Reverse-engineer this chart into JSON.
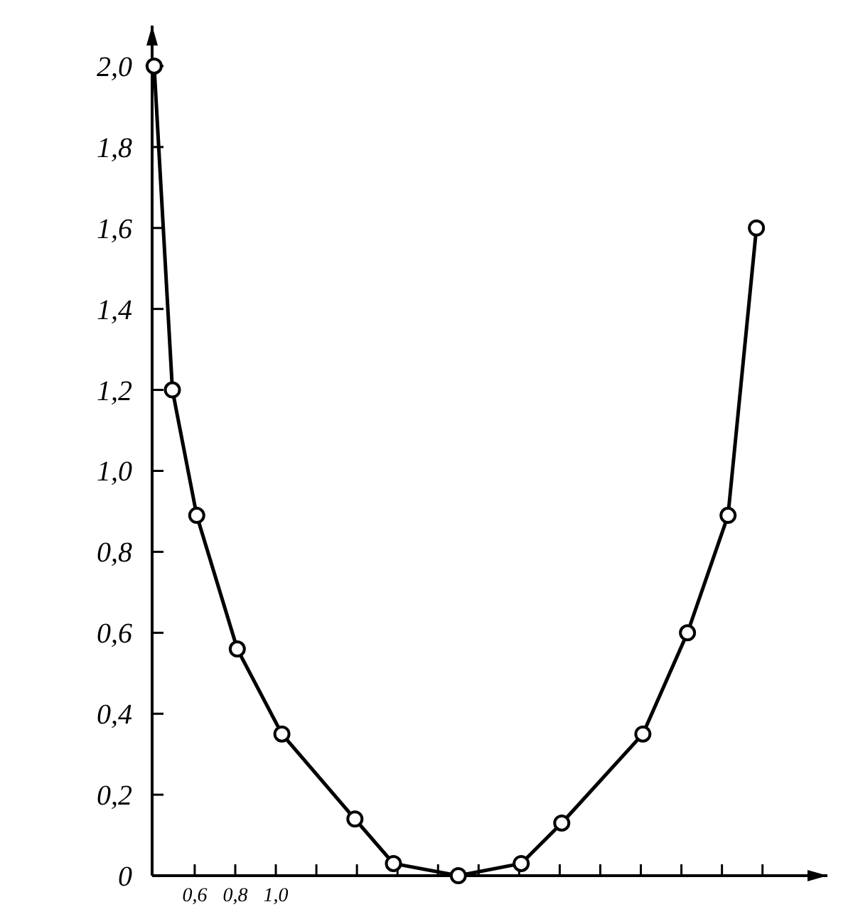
{
  "chart_data": {
    "type": "line",
    "x": [
      0.4,
      0.49,
      0.61,
      0.81,
      1.03,
      1.39,
      1.58,
      1.9,
      2.21,
      2.41,
      2.81,
      3.03,
      3.23,
      3.37
    ],
    "values": [
      2.0,
      1.2,
      0.89,
      0.56,
      0.35,
      0.14,
      0.03,
      0.0,
      0.03,
      0.13,
      0.35,
      0.6,
      0.89,
      1.6
    ],
    "color": "#000000",
    "marker": "circle",
    "line_style": "solid",
    "xlim": [
      0.39,
      3.72
    ],
    "xticks": [
      {
        "value": 0.6,
        "label": "0,6"
      },
      {
        "value": 0.8,
        "label": "0,8"
      },
      {
        "value": 1.0,
        "label": "1,0"
      },
      {
        "value": 1.2,
        "label": null
      },
      {
        "value": 1.4,
        "label": null
      },
      {
        "value": 1.6,
        "label": null
      },
      {
        "value": 1.8,
        "label": null
      },
      {
        "value": 2.0,
        "label": null
      },
      {
        "value": 2.2,
        "label": null
      },
      {
        "value": 2.4,
        "label": null
      },
      {
        "value": 2.6,
        "label": null
      },
      {
        "value": 2.8,
        "label": null
      },
      {
        "value": 3.0,
        "label": null
      },
      {
        "value": 3.2,
        "label": null
      },
      {
        "value": 3.4,
        "label": null
      }
    ],
    "ylim": [
      0,
      2.1
    ],
    "yticks": [
      {
        "value": 0,
        "label": "0"
      },
      {
        "value": 0.2,
        "label": "0,2"
      },
      {
        "value": 0.4,
        "label": "0,4"
      },
      {
        "value": 0.6,
        "label": "0,6"
      },
      {
        "value": 0.8,
        "label": "0,8"
      },
      {
        "value": 1.0,
        "label": "1,0"
      },
      {
        "value": 1.2,
        "label": "1,2"
      },
      {
        "value": 1.4,
        "label": "1,4"
      },
      {
        "value": 1.6,
        "label": "1,6"
      },
      {
        "value": 1.8,
        "label": "1,8"
      },
      {
        "value": 2.0,
        "label": "2,0"
      }
    ],
    "grid": false
  }
}
